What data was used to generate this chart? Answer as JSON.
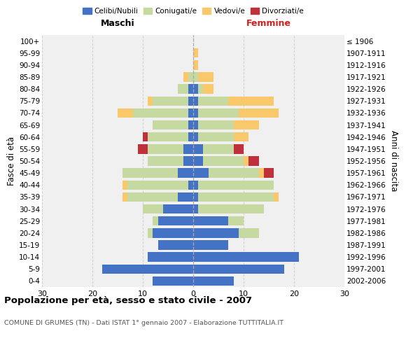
{
  "age_groups": [
    "0-4",
    "5-9",
    "10-14",
    "15-19",
    "20-24",
    "25-29",
    "30-34",
    "35-39",
    "40-44",
    "45-49",
    "50-54",
    "55-59",
    "60-64",
    "65-69",
    "70-74",
    "75-79",
    "80-84",
    "85-89",
    "90-94",
    "95-99",
    "100+"
  ],
  "birth_years": [
    "2002-2006",
    "1997-2001",
    "1992-1996",
    "1987-1991",
    "1982-1986",
    "1977-1981",
    "1972-1976",
    "1967-1971",
    "1962-1966",
    "1957-1961",
    "1952-1956",
    "1947-1951",
    "1942-1946",
    "1937-1941",
    "1932-1936",
    "1927-1931",
    "1922-1926",
    "1917-1921",
    "1912-1916",
    "1907-1911",
    "≤ 1906"
  ],
  "male_celibi": [
    8,
    18,
    9,
    7,
    8,
    7,
    6,
    3,
    1,
    3,
    2,
    2,
    1,
    1,
    1,
    1,
    1,
    0,
    0,
    0,
    0
  ],
  "male_coniugati": [
    0,
    0,
    0,
    0,
    1,
    1,
    4,
    10,
    12,
    11,
    7,
    7,
    8,
    7,
    11,
    7,
    2,
    1,
    0,
    0,
    0
  ],
  "male_vedovi": [
    0,
    0,
    0,
    0,
    0,
    0,
    0,
    1,
    1,
    0,
    0,
    0,
    0,
    0,
    3,
    1,
    0,
    1,
    0,
    0,
    0
  ],
  "male_divorziati": [
    0,
    0,
    0,
    0,
    0,
    0,
    0,
    0,
    0,
    0,
    0,
    2,
    1,
    0,
    0,
    0,
    0,
    0,
    0,
    0,
    0
  ],
  "female_celibi": [
    8,
    18,
    21,
    7,
    9,
    7,
    1,
    1,
    1,
    3,
    2,
    2,
    1,
    1,
    1,
    1,
    1,
    0,
    0,
    0,
    0
  ],
  "female_coniugati": [
    0,
    0,
    0,
    0,
    4,
    3,
    13,
    15,
    15,
    10,
    8,
    6,
    7,
    7,
    8,
    6,
    1,
    1,
    0,
    0,
    0
  ],
  "female_vedovi": [
    0,
    0,
    0,
    0,
    0,
    0,
    0,
    1,
    0,
    1,
    1,
    0,
    3,
    5,
    8,
    9,
    2,
    3,
    1,
    1,
    0
  ],
  "female_divorziati": [
    0,
    0,
    0,
    0,
    0,
    0,
    0,
    0,
    0,
    2,
    2,
    2,
    0,
    0,
    0,
    0,
    0,
    0,
    0,
    0,
    0
  ],
  "color_celibi": "#4472c4",
  "color_coniugati": "#c5d9a0",
  "color_vedovi": "#f9c86a",
  "color_divorziati": "#c0303a",
  "xlim": 30,
  "title": "Popolazione per età, sesso e stato civile - 2007",
  "subtitle": "COMUNE DI GRUMES (TN) - Dati ISTAT 1° gennaio 2007 - Elaborazione TUTTITALIA.IT",
  "ylabel_left": "Fasce di età",
  "ylabel_right": "Anni di nascita",
  "xlabel_left": "Maschi",
  "xlabel_right": "Femmine",
  "bg_color": "#f0f0f0",
  "grid_color": "#cccccc"
}
